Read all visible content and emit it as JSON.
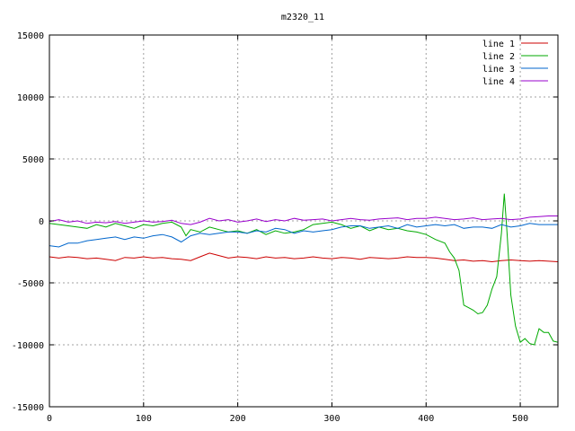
{
  "chart_data": {
    "type": "line",
    "title": "m2320_11",
    "xlabel": "",
    "ylabel": "",
    "xlim": [
      0,
      540
    ],
    "ylim": [
      -15000,
      15000
    ],
    "xticks": [
      0,
      100,
      200,
      300,
      400,
      500
    ],
    "yticks": [
      -15000,
      -10000,
      -5000,
      0,
      5000,
      10000,
      15000
    ],
    "grid": true,
    "legend_position": "top-right",
    "series": [
      {
        "name": "line 1",
        "color": "#cc0000",
        "x": [
          0,
          10,
          20,
          30,
          40,
          50,
          60,
          70,
          80,
          90,
          100,
          110,
          120,
          130,
          140,
          150,
          160,
          170,
          180,
          190,
          200,
          210,
          220,
          230,
          240,
          250,
          260,
          270,
          280,
          290,
          300,
          310,
          320,
          330,
          340,
          350,
          360,
          370,
          380,
          390,
          400,
          410,
          420,
          430,
          440,
          450,
          460,
          470,
          480,
          490,
          500,
          510,
          520,
          530,
          540
        ],
        "y": [
          -2900,
          -3000,
          -2900,
          -2950,
          -3050,
          -3000,
          -3100,
          -3200,
          -2950,
          -3000,
          -2900,
          -3000,
          -2950,
          -3050,
          -3100,
          -3200,
          -2900,
          -2600,
          -2800,
          -3000,
          -2900,
          -2950,
          -3050,
          -2900,
          -3000,
          -2950,
          -3050,
          -3000,
          -2900,
          -3000,
          -3050,
          -2950,
          -3000,
          -3100,
          -2950,
          -3000,
          -3050,
          -3000,
          -2900,
          -2950,
          -2950,
          -3000,
          -3100,
          -3200,
          -3150,
          -3250,
          -3200,
          -3300,
          -3200,
          -3150,
          -3200,
          -3250,
          -3200,
          -3250,
          -3300
        ]
      },
      {
        "name": "line 2",
        "color": "#00aa00",
        "x": [
          0,
          10,
          20,
          30,
          40,
          50,
          60,
          70,
          80,
          90,
          100,
          110,
          120,
          130,
          140,
          145,
          150,
          160,
          170,
          180,
          190,
          200,
          210,
          220,
          230,
          240,
          250,
          260,
          270,
          280,
          290,
          300,
          310,
          320,
          330,
          340,
          350,
          360,
          370,
          380,
          390,
          400,
          410,
          420,
          425,
          430,
          435,
          440,
          445,
          450,
          455,
          460,
          465,
          470,
          475,
          480,
          483,
          486,
          490,
          495,
          500,
          505,
          510,
          515,
          520,
          525,
          530,
          535,
          540
        ],
        "y": [
          -200,
          -300,
          -400,
          -500,
          -600,
          -300,
          -500,
          -200,
          -400,
          -600,
          -300,
          -400,
          -200,
          -100,
          -500,
          -1200,
          -700,
          -900,
          -500,
          -700,
          -900,
          -800,
          -1000,
          -700,
          -1100,
          -800,
          -1000,
          -900,
          -700,
          -300,
          -200,
          -100,
          -300,
          -600,
          -400,
          -800,
          -500,
          -700,
          -600,
          -800,
          -900,
          -1100,
          -1500,
          -1800,
          -2500,
          -3000,
          -4000,
          -6800,
          -7000,
          -7200,
          -7500,
          -7400,
          -6800,
          -5500,
          -4500,
          -1000,
          2200,
          -1000,
          -6000,
          -8500,
          -9800,
          -9500,
          -9900,
          -10000,
          -8700,
          -9000,
          -9000,
          -9700,
          -9800
        ]
      },
      {
        "name": "line 3",
        "color": "#0066cc",
        "x": [
          0,
          10,
          20,
          30,
          40,
          50,
          60,
          70,
          80,
          90,
          100,
          110,
          120,
          130,
          140,
          150,
          160,
          170,
          180,
          190,
          200,
          210,
          220,
          230,
          240,
          250,
          260,
          270,
          280,
          290,
          300,
          310,
          320,
          330,
          340,
          350,
          360,
          370,
          380,
          390,
          400,
          410,
          420,
          430,
          440,
          450,
          460,
          470,
          480,
          490,
          500,
          510,
          520,
          530,
          540
        ],
        "y": [
          -2000,
          -2100,
          -1800,
          -1800,
          -1600,
          -1500,
          -1400,
          -1300,
          -1500,
          -1300,
          -1400,
          -1200,
          -1100,
          -1300,
          -1700,
          -1200,
          -1000,
          -1100,
          -1000,
          -900,
          -900,
          -1000,
          -800,
          -900,
          -600,
          -700,
          -1000,
          -800,
          -900,
          -800,
          -700,
          -500,
          -400,
          -400,
          -600,
          -500,
          -400,
          -600,
          -300,
          -500,
          -400,
          -300,
          -400,
          -300,
          -600,
          -500,
          -500,
          -600,
          -300,
          -500,
          -400,
          -200,
          -300,
          -300,
          -300
        ]
      },
      {
        "name": "line 4",
        "color": "#9900cc",
        "x": [
          0,
          10,
          20,
          30,
          40,
          50,
          60,
          70,
          80,
          90,
          100,
          110,
          120,
          130,
          140,
          150,
          160,
          170,
          180,
          190,
          200,
          210,
          220,
          230,
          240,
          250,
          260,
          270,
          280,
          290,
          300,
          310,
          320,
          330,
          340,
          350,
          360,
          370,
          380,
          390,
          400,
          410,
          420,
          430,
          440,
          450,
          460,
          470,
          480,
          490,
          500,
          510,
          520,
          530,
          540
        ],
        "y": [
          -50,
          100,
          -100,
          0,
          -200,
          -100,
          -150,
          -50,
          -200,
          -100,
          0,
          -100,
          -50,
          50,
          -200,
          -300,
          -100,
          200,
          0,
          100,
          -100,
          0,
          150,
          -50,
          100,
          0,
          200,
          50,
          100,
          150,
          0,
          100,
          200,
          100,
          50,
          150,
          200,
          250,
          100,
          200,
          200,
          300,
          200,
          100,
          150,
          250,
          100,
          150,
          200,
          100,
          150,
          300,
          350,
          400,
          400
        ]
      }
    ]
  }
}
